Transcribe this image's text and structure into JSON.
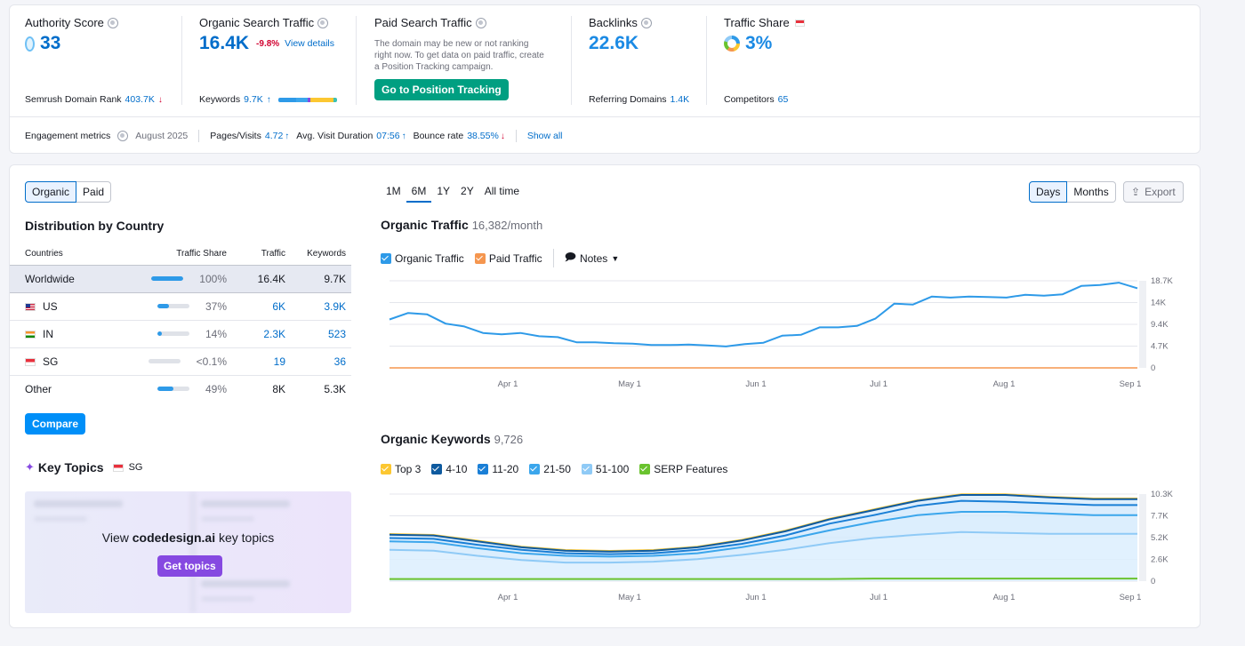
{
  "metrics": {
    "authority": {
      "title": "Authority Score",
      "value": "33",
      "bottom_label": "Semrush Domain Rank",
      "bottom_value": "403.7K"
    },
    "organic": {
      "title": "Organic Search Traffic",
      "value": "16.4K",
      "change": "-9.8%",
      "link": "View details",
      "bottom_label": "Keywords",
      "bottom_value": "9.7K"
    },
    "paid": {
      "title": "Paid Search Traffic",
      "note": "The domain may be new or not ranking right now. To get data on paid traffic, create a Position Tracking campaign.",
      "button": "Go to Position Tracking"
    },
    "backlinks": {
      "title": "Backlinks",
      "value": "22.6K",
      "bottom_label": "Referring Domains",
      "bottom_value": "1.4K"
    },
    "traffic_share": {
      "title": "Traffic Share",
      "value": "3%",
      "bottom_label": "Competitors",
      "bottom_value": "65"
    }
  },
  "engagement": {
    "label": "Engagement metrics",
    "date": "August 2025",
    "pages_label": "Pages/Visits",
    "pages_value": "4.72",
    "duration_label": "Avg. Visit Duration",
    "duration_value": "07:56",
    "bounce_label": "Bounce rate",
    "bounce_value": "38.55%",
    "show_all": "Show all"
  },
  "toggle": {
    "organic": "Organic",
    "paid": "Paid"
  },
  "distribution": {
    "title": "Distribution by Country",
    "headers": {
      "country": "Countries",
      "share": "Traffic Share",
      "traffic": "Traffic",
      "keywords": "Keywords"
    },
    "rows": [
      {
        "country": "Worldwide",
        "share": "100%",
        "share_fraction": 1.0,
        "traffic": "16.4K",
        "keywords": "9.7K"
      },
      {
        "country": "US",
        "share": "37%",
        "share_fraction": 0.37,
        "traffic": "6K",
        "keywords": "3.9K"
      },
      {
        "country": "IN",
        "share": "14%",
        "share_fraction": 0.14,
        "traffic": "2.3K",
        "keywords": "523"
      },
      {
        "country": "SG",
        "share": "<0.1%",
        "share_fraction": 0.0,
        "traffic": "19",
        "keywords": "36"
      },
      {
        "country": "Other",
        "share": "49%",
        "share_fraction": 0.49,
        "traffic": "8K",
        "keywords": "5.3K"
      }
    ],
    "compare_button": "Compare"
  },
  "key_topics": {
    "title": "Key Topics",
    "country": "SG",
    "view_prefix": "View ",
    "domain": "codedesign.ai",
    "view_suffix": " key topics",
    "button": "Get topics"
  },
  "period_tabs": [
    "1M",
    "6M",
    "1Y",
    "2Y",
    "All time"
  ],
  "active_period": "6M",
  "view_toggle": {
    "days": "Days",
    "months": "Months",
    "export": "Export"
  },
  "organic_traffic": {
    "title": "Organic Traffic",
    "subtitle": "16,382/month",
    "legend": {
      "organic": "Organic Traffic",
      "paid": "Paid Traffic",
      "notes": "Notes"
    }
  },
  "organic_keywords": {
    "title": "Organic Keywords",
    "subtitle": "9,726",
    "legend": [
      "Top 3",
      "4-10",
      "11-20",
      "21-50",
      "51-100",
      "SERP Features"
    ]
  },
  "colors": {
    "accent": "#006dca",
    "organic": "#2e9ae8",
    "paid": "#f5964f",
    "top3": "#fcc731",
    "k4_10": "#0e5a9f",
    "k11_20": "#1a7fd6",
    "k21_50": "#3ba6ec",
    "k51_100": "#8fcaf6",
    "serp": "#6ac32e"
  },
  "chart_data": [
    {
      "type": "line",
      "title": "Organic Traffic",
      "x_ticks": [
        "Apr 1",
        "May 1",
        "Jun 1",
        "Jul 1",
        "Aug 1",
        "Sep 1"
      ],
      "y_ticks": [
        "0",
        "4.7K",
        "9.4K",
        "14K",
        "18.7K"
      ],
      "ylim": [
        0,
        18700
      ],
      "series": [
        {
          "name": "Organic Traffic",
          "values": [
            10400,
            11800,
            11500,
            9500,
            8900,
            7500,
            7200,
            7500,
            6800,
            6600,
            5500,
            5500,
            5300,
            5200,
            4900,
            4900,
            5000,
            4800,
            4600,
            5100,
            5400,
            6900,
            7100,
            8700,
            8700,
            9000,
            10600,
            13800,
            13600,
            15300,
            15100,
            15300,
            15200,
            15100,
            15700,
            15500,
            15800,
            17600,
            17800,
            18300,
            17100
          ]
        },
        {
          "name": "Paid Traffic",
          "values": [
            0,
            0,
            0,
            0,
            0,
            0,
            0,
            0,
            0,
            0,
            0,
            0,
            0,
            0,
            0,
            0,
            0,
            0,
            0,
            0,
            0,
            0,
            0,
            0,
            0,
            0,
            0,
            0,
            0,
            0,
            0,
            0,
            0,
            0,
            0,
            0,
            0,
            0,
            0,
            0,
            0
          ]
        }
      ]
    },
    {
      "type": "area",
      "title": "Organic Keywords",
      "x_ticks": [
        "Apr 1",
        "May 1",
        "Jun 1",
        "Jul 1",
        "Aug 1",
        "Sep 1"
      ],
      "y_ticks": [
        "0",
        "2.6K",
        "5.2K",
        "7.7K",
        "10.3K"
      ],
      "ylim": [
        0,
        10300
      ],
      "series": [
        {
          "name": "Top 3",
          "values": [
            5600,
            5500,
            4800,
            4100,
            3700,
            3600,
            3700,
            4100,
            4900,
            6000,
            7400,
            8500,
            9600,
            10300,
            10300,
            10000,
            9800,
            9800
          ]
        },
        {
          "name": "4-10",
          "values": [
            5500,
            5400,
            4700,
            4000,
            3600,
            3500,
            3600,
            4000,
            4800,
            5900,
            7300,
            8400,
            9500,
            10200,
            10200,
            9900,
            9700,
            9700
          ]
        },
        {
          "name": "11-20",
          "values": [
            5100,
            5000,
            4300,
            3700,
            3300,
            3200,
            3300,
            3700,
            4400,
            5400,
            6800,
            7800,
            8900,
            9500,
            9400,
            9200,
            9000,
            9000
          ]
        },
        {
          "name": "21-50",
          "values": [
            4700,
            4600,
            3900,
            3300,
            3000,
            2900,
            3000,
            3300,
            4000,
            4900,
            6000,
            7000,
            7800,
            8200,
            8200,
            8000,
            7800,
            7800
          ]
        },
        {
          "name": "51-100",
          "values": [
            3700,
            3600,
            3000,
            2500,
            2200,
            2200,
            2300,
            2600,
            3100,
            3700,
            4500,
            5100,
            5500,
            5800,
            5700,
            5600,
            5600,
            5600
          ]
        },
        {
          "name": "SERP Features",
          "values": [
            250,
            250,
            250,
            250,
            250,
            250,
            250,
            250,
            250,
            250,
            250,
            300,
            300,
            300,
            300,
            300,
            300,
            300
          ]
        }
      ]
    }
  ]
}
